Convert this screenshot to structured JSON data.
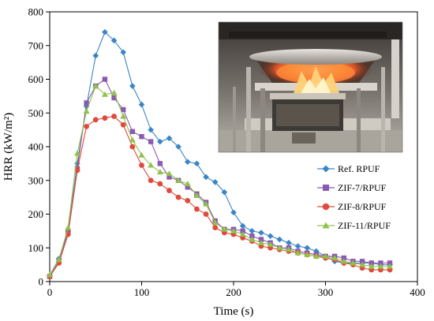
{
  "chart_data": {
    "type": "line",
    "xlabel": "Time (s)",
    "ylabel": "HRR (kW/m²)",
    "xlim": [
      0,
      400
    ],
    "ylim": [
      0,
      800
    ],
    "x_ticks": [
      "0",
      "100",
      "200",
      "300",
      "400"
    ],
    "y_ticks": [
      "0",
      "100",
      "200",
      "300",
      "400",
      "500",
      "600",
      "700",
      "800"
    ],
    "legend_position": "right",
    "series": [
      {
        "name": "Ref. RPUF",
        "color": "#3a85c6",
        "marker": "diamond",
        "x": [
          0,
          10,
          20,
          30,
          40,
          50,
          60,
          70,
          80,
          90,
          100,
          110,
          120,
          130,
          140,
          150,
          160,
          170,
          180,
          190,
          200,
          210,
          220,
          230,
          240,
          250,
          260,
          270,
          280,
          290,
          300,
          310,
          320,
          330,
          340,
          350,
          360,
          370
        ],
        "y": [
          18,
          68,
          148,
          350,
          520,
          670,
          740,
          715,
          680,
          580,
          525,
          450,
          415,
          425,
          400,
          355,
          350,
          310,
          295,
          265,
          205,
          165,
          150,
          145,
          135,
          125,
          115,
          105,
          100,
          90,
          75,
          60,
          55,
          55,
          55,
          55,
          50,
          50
        ]
      },
      {
        "name": "ZIF-7/RPUF",
        "color": "#8a5ab0",
        "marker": "square",
        "x": [
          0,
          10,
          20,
          30,
          40,
          50,
          60,
          70,
          80,
          90,
          100,
          110,
          120,
          130,
          140,
          150,
          160,
          170,
          180,
          190,
          200,
          210,
          220,
          230,
          240,
          250,
          260,
          270,
          280,
          290,
          300,
          310,
          320,
          330,
          340,
          350,
          360,
          370
        ],
        "y": [
          15,
          60,
          148,
          335,
          530,
          580,
          600,
          545,
          510,
          445,
          430,
          415,
          350,
          310,
          300,
          280,
          260,
          235,
          180,
          155,
          155,
          150,
          135,
          125,
          115,
          100,
          100,
          90,
          85,
          80,
          75,
          75,
          70,
          60,
          60,
          55,
          55,
          55
        ]
      },
      {
        "name": "ZIF-8/RPUF",
        "color": "#e04a3c",
        "marker": "circle",
        "x": [
          0,
          10,
          20,
          30,
          40,
          50,
          60,
          70,
          80,
          90,
          100,
          110,
          120,
          130,
          140,
          150,
          160,
          170,
          180,
          190,
          200,
          210,
          220,
          230,
          240,
          250,
          260,
          270,
          280,
          290,
          300,
          310,
          320,
          330,
          340,
          350,
          360,
          370
        ],
        "y": [
          15,
          55,
          140,
          330,
          460,
          480,
          485,
          490,
          465,
          400,
          345,
          300,
          290,
          270,
          250,
          240,
          215,
          200,
          160,
          145,
          140,
          130,
          120,
          105,
          100,
          95,
          90,
          85,
          80,
          75,
          70,
          65,
          55,
          50,
          40,
          35,
          35,
          35
        ]
      },
      {
        "name": "ZIF-11/RPUF",
        "color": "#8fc24a",
        "marker": "triangle",
        "x": [
          0,
          10,
          20,
          30,
          40,
          50,
          60,
          70,
          80,
          90,
          100,
          110,
          120,
          130,
          140,
          150,
          160,
          170,
          180,
          190,
          200,
          210,
          220,
          230,
          240,
          250,
          260,
          270,
          280,
          290,
          300,
          310,
          320,
          330,
          340,
          350,
          360,
          370
        ],
        "y": [
          20,
          65,
          160,
          380,
          505,
          580,
          555,
          560,
          490,
          420,
          375,
          345,
          325,
          320,
          300,
          290,
          255,
          230,
          175,
          155,
          150,
          140,
          125,
          115,
          110,
          100,
          95,
          85,
          80,
          75,
          75,
          70,
          60,
          55,
          50,
          45,
          45,
          45
        ]
      }
    ]
  },
  "inset": {
    "subject": "cone-calorimeter-flame-photo"
  }
}
